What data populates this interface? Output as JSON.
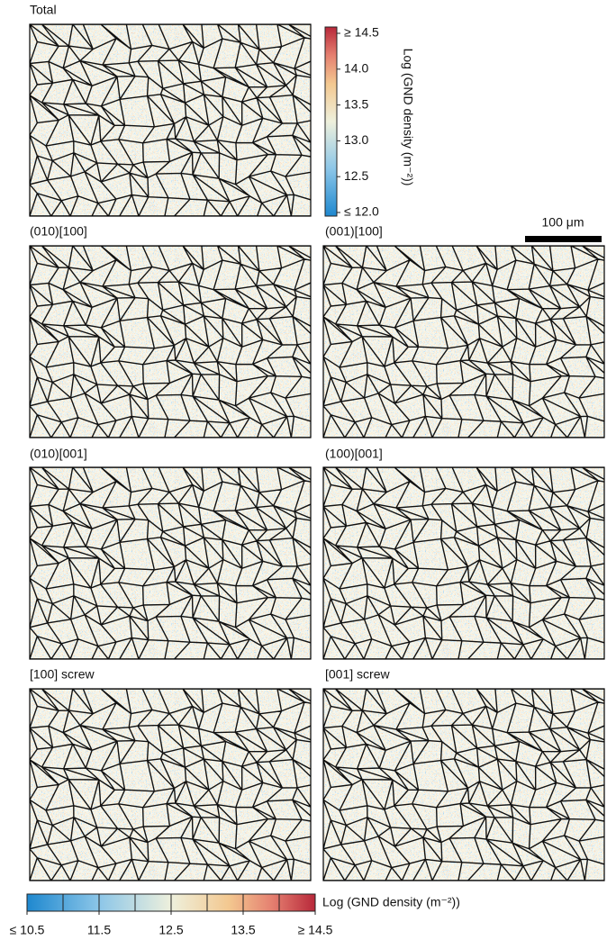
{
  "panels": [
    {
      "label": "Total"
    },
    {
      "label": "(010)[100]"
    },
    {
      "label": "(001)[100]"
    },
    {
      "label": "(010)[001]"
    },
    {
      "label": "(100)[001]"
    },
    {
      "label": "[100] screw"
    },
    {
      "label": "[001] screw"
    }
  ],
  "colorbar_top": {
    "title": "Log (GND density (m⁻²))",
    "ticks": [
      {
        "value": 14.5,
        "label": "≥ 14.5"
      },
      {
        "value": 14.0,
        "label": "14.0"
      },
      {
        "value": 13.5,
        "label": "13.5"
      },
      {
        "value": 13.0,
        "label": "13.0"
      },
      {
        "value": 12.5,
        "label": "12.5"
      },
      {
        "value": 12.0,
        "label": "≤ 12.0"
      }
    ]
  },
  "colorbar_bottom": {
    "title": "Log (GND density (m⁻²))",
    "ticks": [
      {
        "value": 10.5,
        "label": "≤ 10.5"
      },
      {
        "value": 11.5,
        "label": "11.5"
      },
      {
        "value": 12.5,
        "label": "12.5"
      },
      {
        "value": 13.5,
        "label": "13.5"
      },
      {
        "value": 14.5,
        "label": "≥ 14.5"
      }
    ]
  },
  "scale_bar": {
    "label": "100 μm"
  }
}
